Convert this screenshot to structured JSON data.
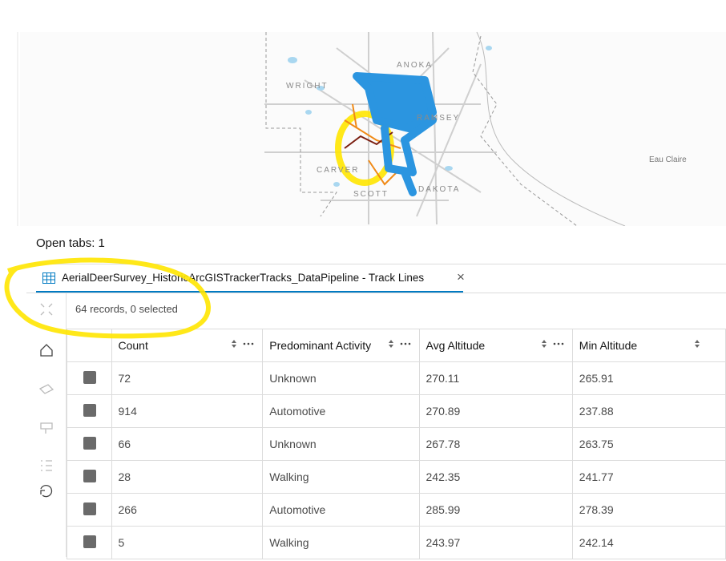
{
  "map": {
    "labels": [
      "ANOKA",
      "WRIGHT",
      "RAMSEY",
      "CARVER",
      "SCOTT",
      "DAKOTA",
      "Eau Claire"
    ]
  },
  "panel": {
    "open_tabs": "Open tabs: 1",
    "tab_title": "AerialDeerSurvey_HistoricArcGISTrackerTracks_DataPipeline - Track Lines",
    "close": "×",
    "record_count": "64 records, 0 selected"
  },
  "table": {
    "columns": [
      "Count",
      "Predominant Activity",
      "Avg Altitude",
      "Min Altitude"
    ],
    "rows": [
      [
        "72",
        "Unknown",
        "270.11",
        "265.91"
      ],
      [
        "914",
        "Automotive",
        "270.89",
        "237.88"
      ],
      [
        "66",
        "Unknown",
        "267.78",
        "263.75"
      ],
      [
        "28",
        "Walking",
        "242.35",
        "241.77"
      ],
      [
        "266",
        "Automotive",
        "285.99",
        "278.39"
      ],
      [
        "5",
        "Walking",
        "243.97",
        "242.14"
      ]
    ]
  }
}
